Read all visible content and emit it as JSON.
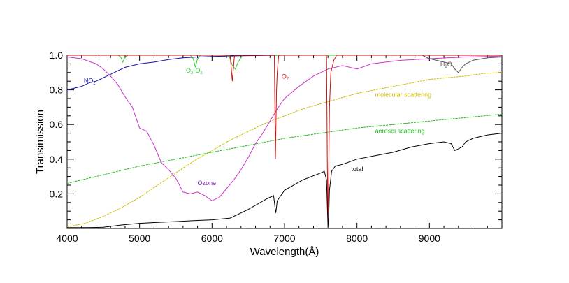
{
  "chart_data": {
    "type": "line",
    "title": "",
    "xlabel": "Wavelength(Å)",
    "ylabel": "Transimission",
    "xlim": [
      4000,
      10000
    ],
    "ylim": [
      0,
      1.0
    ],
    "xticks": [
      4000,
      5000,
      6000,
      7000,
      8000,
      9000
    ],
    "xtick_labels": [
      "4000",
      "5000",
      "6000",
      "7000",
      "8000",
      "9000"
    ],
    "yticks": [
      0.2,
      0.4,
      0.6,
      0.8,
      1.0
    ],
    "ytick_labels": [
      "0.2",
      "0.4",
      "0.6",
      "0.8",
      "1.0"
    ],
    "grid": false,
    "colors": {
      "total": "#000000",
      "ozone": "#cc33cc",
      "molecular": "#ccbb00",
      "aerosol": "#22bb22",
      "no2": "#1111aa",
      "o2o2": "#33cc33",
      "o2": "#cc1111",
      "h2o": "#555555",
      "ozone_label": "#7722aa"
    },
    "annotations": [
      {
        "id": "no2",
        "main": "NO",
        "sub": "2",
        "tail": "",
        "x": 4230,
        "y": 0.84
      },
      {
        "id": "o2o2",
        "main": "O",
        "sub": "2",
        "tail": "-O",
        "sub2": "2",
        "x": 5640,
        "y": 0.9
      },
      {
        "id": "o2",
        "main": "O",
        "sub": "2",
        "tail": "",
        "x": 6960,
        "y": 0.865
      },
      {
        "id": "h2o",
        "main": "H",
        "sub": "2",
        "tail": "O",
        "x": 9150,
        "y": 0.935
      },
      {
        "id": "ozone",
        "main": "Ozone",
        "x": 5800,
        "y": 0.25
      },
      {
        "id": "molecular",
        "main": "molecular scattering",
        "x": 8250,
        "y": 0.76
      },
      {
        "id": "aerosol",
        "main": "aerosol scattering",
        "x": 8250,
        "y": 0.55
      },
      {
        "id": "total",
        "main": "total",
        "x": 7920,
        "y": 0.33
      }
    ],
    "series": [
      {
        "name": "molecular scattering",
        "color_key": "molecular",
        "x": [
          4000,
          4250,
          4500,
          4750,
          5000,
          5250,
          5500,
          5750,
          6000,
          6250,
          6500,
          6750,
          7000,
          7250,
          7500,
          7750,
          8000,
          8250,
          8500,
          8750,
          9000,
          9250,
          9500,
          9750,
          10000
        ],
        "y": [
          0.01,
          0.03,
          0.07,
          0.12,
          0.18,
          0.25,
          0.32,
          0.39,
          0.45,
          0.51,
          0.56,
          0.61,
          0.65,
          0.69,
          0.72,
          0.75,
          0.78,
          0.8,
          0.82,
          0.84,
          0.86,
          0.87,
          0.88,
          0.895,
          0.9
        ]
      },
      {
        "name": "aerosol scattering",
        "color_key": "aerosol",
        "x": [
          4000,
          4500,
          5000,
          5500,
          6000,
          6500,
          7000,
          7500,
          8000,
          8500,
          9000,
          9500,
          10000
        ],
        "y": [
          0.26,
          0.31,
          0.36,
          0.4,
          0.44,
          0.48,
          0.52,
          0.55,
          0.58,
          0.6,
          0.62,
          0.64,
          0.66
        ]
      },
      {
        "name": "Ozone",
        "color_key": "ozone",
        "x": [
          4000,
          4200,
          4400,
          4500,
          4600,
          4700,
          4800,
          4900,
          5000,
          5100,
          5200,
          5300,
          5400,
          5500,
          5600,
          5700,
          5800,
          5900,
          6000,
          6100,
          6200,
          6300,
          6400,
          6500,
          6600,
          6700,
          6800,
          6900,
          7000,
          7200,
          7400,
          7600,
          7800,
          8000,
          8200,
          8400,
          8600,
          8800,
          9000,
          9500,
          10000
        ],
        "y": [
          0.99,
          0.98,
          0.95,
          0.92,
          0.88,
          0.83,
          0.76,
          0.7,
          0.58,
          0.56,
          0.48,
          0.38,
          0.34,
          0.29,
          0.21,
          0.2,
          0.21,
          0.19,
          0.16,
          0.18,
          0.23,
          0.28,
          0.34,
          0.41,
          0.49,
          0.55,
          0.62,
          0.69,
          0.75,
          0.82,
          0.88,
          0.92,
          0.94,
          0.92,
          0.95,
          0.96,
          0.97,
          0.975,
          0.98,
          0.99,
          0.995
        ]
      },
      {
        "name": "NO2",
        "color_key": "no2",
        "x": [
          4000,
          4100,
          4200,
          4300,
          4400,
          4500,
          4600,
          4700,
          4800,
          4900,
          5000,
          5200,
          5400,
          5600,
          5800,
          6000,
          6200,
          6400,
          6600,
          6800,
          7000,
          8000,
          9000,
          10000
        ],
        "y": [
          0.8,
          0.81,
          0.82,
          0.84,
          0.85,
          0.87,
          0.89,
          0.91,
          0.93,
          0.94,
          0.95,
          0.96,
          0.975,
          0.985,
          0.99,
          0.993,
          0.995,
          0.997,
          0.998,
          0.999,
          1.0,
          1.0,
          1.0,
          1.0
        ]
      },
      {
        "name": "O2-O2",
        "color_key": "o2o2",
        "x": [
          4000,
          4700,
          4740,
          4770,
          4800,
          4840,
          5500,
          5700,
          5740,
          5770,
          5800,
          5840,
          6200,
          6240,
          6280,
          6320,
          6360,
          6420,
          10000
        ],
        "y": [
          1.0,
          1.0,
          0.99,
          0.96,
          0.99,
          1.0,
          1.0,
          1.0,
          0.98,
          0.93,
          0.98,
          1.0,
          1.0,
          0.99,
          0.94,
          0.92,
          0.96,
          1.0,
          1.0
        ]
      },
      {
        "name": "O2",
        "color_key": "o2",
        "x": [
          4000,
          6250,
          6270,
          6280,
          6290,
          6310,
          6860,
          6870,
          6875,
          6880,
          6890,
          6900,
          6920,
          7580,
          7590,
          7600,
          7610,
          7620,
          7640,
          7680,
          7720,
          10000
        ],
        "y": [
          1.0,
          1.0,
          0.9,
          0.85,
          0.9,
          1.0,
          1.0,
          0.6,
          0.4,
          0.55,
          0.8,
          0.9,
          1.0,
          1.0,
          0.4,
          0.02,
          0.3,
          0.7,
          0.9,
          0.97,
          1.0,
          1.0
        ]
      },
      {
        "name": "H2O",
        "color_key": "h2o",
        "x": [
          8900,
          8950,
          9000,
          9100,
          9200,
          9300,
          9350,
          9400,
          9450,
          9500,
          9600,
          9800,
          10000
        ],
        "y": [
          1.0,
          0.99,
          0.98,
          0.97,
          0.96,
          0.95,
          0.92,
          0.9,
          0.93,
          0.95,
          0.97,
          0.985,
          0.99
        ]
      },
      {
        "name": "total",
        "color_key": "total",
        "x": [
          4000,
          4250,
          4500,
          4750,
          5000,
          5250,
          5500,
          5750,
          6000,
          6250,
          6500,
          6750,
          6850,
          6870,
          6880,
          6900,
          7000,
          7250,
          7500,
          7550,
          7580,
          7600,
          7610,
          7620,
          7650,
          7700,
          7800,
          8000,
          8250,
          8500,
          8750,
          9000,
          9200,
          9300,
          9350,
          9400,
          9450,
          9500,
          9600,
          9800,
          10000
        ],
        "y": [
          0.005,
          0.005,
          0.007,
          0.02,
          0.03,
          0.035,
          0.04,
          0.045,
          0.05,
          0.06,
          0.11,
          0.17,
          0.19,
          0.12,
          0.09,
          0.16,
          0.22,
          0.28,
          0.32,
          0.33,
          0.28,
          0.01,
          0.06,
          0.22,
          0.33,
          0.36,
          0.37,
          0.4,
          0.42,
          0.44,
          0.47,
          0.49,
          0.5,
          0.49,
          0.45,
          0.46,
          0.47,
          0.5,
          0.52,
          0.54,
          0.55
        ]
      }
    ]
  }
}
